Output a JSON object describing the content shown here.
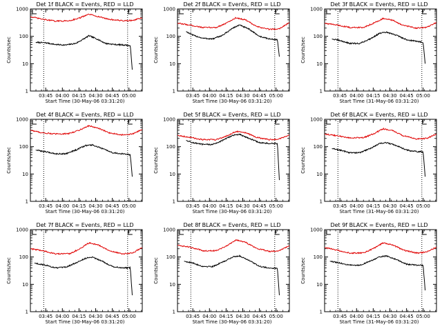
{
  "figure": {
    "rows": 3,
    "cols": 3,
    "background": "#ffffff",
    "axis_color": "#000000",
    "events_color": "#000000",
    "lld_color": "#e00000"
  },
  "chart_data": [
    {
      "type": "line",
      "title": "Det 1f BLACK = Events, RED = LLD",
      "xlabel": "Start Time (30-May-06 03:31:20)",
      "ylabel": "Counts/sec",
      "yscale": "log",
      "ylim": [
        1,
        1000
      ],
      "xlim": [
        3.52,
        5.2
      ],
      "xticks": [
        3.75,
        4.0,
        4.25,
        4.5,
        4.75,
        5.0
      ],
      "xtick_labels": [
        "03:45",
        "04:00",
        "04:15",
        "04:30",
        "04:45",
        "05:00"
      ],
      "yticks": [
        1,
        10,
        100,
        1000
      ],
      "ytick_labels": [
        "1",
        "10",
        "100",
        "1000"
      ],
      "marker_lines": [
        3.72,
        4.98
      ],
      "corner_marks": true,
      "series": [
        {
          "name": "Events",
          "color": "#000000",
          "x": [
            3.6,
            3.75,
            3.9,
            4.05,
            4.2,
            4.3,
            4.4,
            4.52,
            4.65,
            4.8,
            4.95,
            5.02,
            5.05
          ],
          "values": [
            60,
            58,
            50,
            48,
            55,
            75,
            105,
            80,
            55,
            50,
            48,
            45,
            6
          ]
        },
        {
          "name": "LLD",
          "color": "#e00000",
          "x": [
            3.52,
            3.7,
            3.9,
            4.1,
            4.25,
            4.4,
            4.55,
            4.7,
            4.9,
            5.05,
            5.2
          ],
          "values": [
            520,
            420,
            360,
            370,
            460,
            640,
            520,
            420,
            370,
            380,
            470
          ]
        }
      ]
    },
    {
      "type": "line",
      "title": "Det 2f BLACK = Events, RED = LLD",
      "xlabel": "Start Time (30-May-06 03:31:20)",
      "ylabel": "Counts/sec",
      "yscale": "log",
      "ylim": [
        1,
        1000
      ],
      "xlim": [
        3.52,
        5.2
      ],
      "xticks": [
        3.75,
        4.0,
        4.25,
        4.5,
        4.75,
        5.0
      ],
      "xtick_labels": [
        "03:45",
        "04:00",
        "04:15",
        "04:30",
        "04:45",
        "05:00"
      ],
      "yticks": [
        1,
        10,
        100,
        1000
      ],
      "ytick_labels": [
        "1",
        "10",
        "100",
        "1000"
      ],
      "marker_lines": [
        3.72,
        4.98
      ],
      "corner_marks": true,
      "series": [
        {
          "name": "Events",
          "color": "#000000",
          "x": [
            3.65,
            3.75,
            3.9,
            4.05,
            4.2,
            4.35,
            4.45,
            4.6,
            4.75,
            4.9,
            5.02,
            5.05
          ],
          "values": [
            150,
            110,
            85,
            80,
            110,
            200,
            260,
            180,
            100,
            80,
            75,
            18
          ]
        },
        {
          "name": "LLD",
          "color": "#e00000",
          "x": [
            3.52,
            3.7,
            3.9,
            4.1,
            4.25,
            4.4,
            4.55,
            4.7,
            4.9,
            5.05,
            5.2
          ],
          "values": [
            300,
            260,
            210,
            210,
            300,
            480,
            390,
            230,
            180,
            190,
            320
          ]
        }
      ]
    },
    {
      "type": "line",
      "title": "Det 3f BLACK = Events, RED = LLD",
      "xlabel": "Start Time (31-May-06 03:31:20)",
      "ylabel": "Counts/sec",
      "yscale": "log",
      "ylim": [
        1,
        1000
      ],
      "xlim": [
        3.52,
        5.2
      ],
      "xticks": [
        3.75,
        4.0,
        4.25,
        4.5,
        4.75,
        5.0
      ],
      "xtick_labels": [
        "03:45",
        "04:00",
        "04:15",
        "04:30",
        "04:45",
        "05:00"
      ],
      "yticks": [
        1,
        10,
        100,
        1000
      ],
      "ytick_labels": [
        "1",
        "10",
        "100",
        "1000"
      ],
      "marker_lines": [
        3.72,
        4.98
      ],
      "corner_marks": true,
      "series": [
        {
          "name": "Events",
          "color": "#000000",
          "x": [
            3.63,
            3.75,
            3.9,
            4.05,
            4.2,
            4.35,
            4.45,
            4.6,
            4.75,
            4.92,
            5.0,
            5.03
          ],
          "values": [
            80,
            70,
            55,
            55,
            80,
            130,
            140,
            110,
            75,
            65,
            60,
            10
          ]
        },
        {
          "name": "LLD",
          "color": "#e00000",
          "x": [
            3.52,
            3.7,
            3.9,
            4.1,
            4.25,
            4.4,
            4.55,
            4.7,
            4.9,
            5.05,
            5.2
          ],
          "values": [
            300,
            260,
            210,
            210,
            300,
            450,
            380,
            250,
            200,
            210,
            320
          ]
        }
      ]
    },
    {
      "type": "line",
      "title": "Det 4f BLACK = Events, RED = LLD",
      "xlabel": "Start Time (30-May-06 03:31:20)",
      "ylabel": "Counts/sec",
      "yscale": "log",
      "ylim": [
        1,
        1000
      ],
      "xlim": [
        3.52,
        5.2
      ],
      "xticks": [
        3.75,
        4.0,
        4.25,
        4.5,
        4.75,
        5.0
      ],
      "xtick_labels": [
        "03:45",
        "04:00",
        "04:15",
        "04:30",
        "04:45",
        "05:00"
      ],
      "yticks": [
        1,
        10,
        100,
        1000
      ],
      "ytick_labels": [
        "1",
        "10",
        "100",
        "1000"
      ],
      "marker_lines": [
        3.72,
        4.98
      ],
      "corner_marks": true,
      "series": [
        {
          "name": "Events",
          "color": "#000000",
          "x": [
            3.6,
            3.75,
            3.9,
            4.05,
            4.2,
            4.35,
            4.45,
            4.6,
            4.75,
            4.9,
            5.02,
            5.05
          ],
          "values": [
            75,
            65,
            55,
            55,
            75,
            110,
            115,
            85,
            60,
            55,
            50,
            8
          ]
        },
        {
          "name": "LLD",
          "color": "#e00000",
          "x": [
            3.52,
            3.7,
            3.9,
            4.1,
            4.25,
            4.4,
            4.55,
            4.7,
            4.9,
            5.05,
            5.2
          ],
          "values": [
            400,
            320,
            290,
            300,
            400,
            580,
            460,
            320,
            270,
            290,
            420
          ]
        }
      ]
    },
    {
      "type": "line",
      "title": "Det 5f BLACK = Events, RED = LLD",
      "xlabel": "Start Time (30-May-06 03:31:20)",
      "ylabel": "Counts/sec",
      "yscale": "log",
      "ylim": [
        1,
        1000
      ],
      "xlim": [
        3.52,
        5.2
      ],
      "xticks": [
        3.75,
        4.0,
        4.25,
        4.5,
        4.75,
        5.0
      ],
      "xtick_labels": [
        "03:45",
        "04:00",
        "04:15",
        "04:30",
        "04:45",
        "05:00"
      ],
      "yticks": [
        1,
        10,
        100,
        1000
      ],
      "ytick_labels": [
        "1",
        "10",
        "100",
        "1000"
      ],
      "marker_lines": [
        3.72,
        4.98
      ],
      "corner_marks": true,
      "series": [
        {
          "name": "Events",
          "color": "#000000",
          "x": [
            3.65,
            3.75,
            3.9,
            4.05,
            4.2,
            4.35,
            4.45,
            4.6,
            4.75,
            4.9,
            5.02,
            5.05
          ],
          "values": [
            170,
            140,
            120,
            120,
            170,
            260,
            280,
            200,
            140,
            130,
            130,
            6
          ]
        },
        {
          "name": "LLD",
          "color": "#e00000",
          "x": [
            3.52,
            3.7,
            3.9,
            4.1,
            4.25,
            4.4,
            4.55,
            4.7,
            4.9,
            5.05,
            5.2
          ],
          "values": [
            260,
            220,
            180,
            180,
            240,
            360,
            320,
            220,
            180,
            190,
            270
          ]
        }
      ]
    },
    {
      "type": "line",
      "title": "Det 6f BLACK = Events, RED = LLD",
      "xlabel": "Start Time (31-May-06 03:31:20)",
      "ylabel": "Counts/sec",
      "yscale": "log",
      "ylim": [
        1,
        1000
      ],
      "xlim": [
        3.52,
        5.2
      ],
      "xticks": [
        3.75,
        4.0,
        4.25,
        4.5,
        4.75,
        5.0
      ],
      "xtick_labels": [
        "03:45",
        "04:00",
        "04:15",
        "04:30",
        "04:45",
        "05:00"
      ],
      "yticks": [
        1,
        10,
        100,
        1000
      ],
      "ytick_labels": [
        "1",
        "10",
        "100",
        "1000"
      ],
      "marker_lines": [
        3.72,
        4.98
      ],
      "corner_marks": true,
      "series": [
        {
          "name": "Events",
          "color": "#000000",
          "x": [
            3.63,
            3.75,
            3.9,
            4.05,
            4.2,
            4.35,
            4.45,
            4.6,
            4.75,
            4.92,
            5.0,
            5.03
          ],
          "values": [
            85,
            75,
            60,
            60,
            85,
            130,
            140,
            110,
            75,
            65,
            65,
            8
          ]
        },
        {
          "name": "LLD",
          "color": "#e00000",
          "x": [
            3.52,
            3.7,
            3.9,
            4.1,
            4.25,
            4.4,
            4.55,
            4.7,
            4.9,
            5.05,
            5.2
          ],
          "values": [
            290,
            250,
            210,
            210,
            290,
            450,
            380,
            250,
            190,
            200,
            290
          ]
        }
      ]
    },
    {
      "type": "line",
      "title": "Det 7f BLACK = Events, RED = LLD",
      "xlabel": "Start Time (30-May-06 03:31:20)",
      "ylabel": "Counts/sec",
      "yscale": "log",
      "ylim": [
        1,
        1000
      ],
      "xlim": [
        3.52,
        5.2
      ],
      "xticks": [
        3.75,
        4.0,
        4.25,
        4.5,
        4.75,
        5.0
      ],
      "xtick_labels": [
        "03:45",
        "04:00",
        "04:15",
        "04:30",
        "04:45",
        "05:00"
      ],
      "yticks": [
        1,
        10,
        100,
        1000
      ],
      "ytick_labels": [
        "1",
        "10",
        "100",
        "1000"
      ],
      "marker_lines": [
        3.72,
        4.98
      ],
      "corner_marks": true,
      "series": [
        {
          "name": "Events",
          "color": "#000000",
          "x": [
            3.58,
            3.75,
            3.9,
            4.05,
            4.2,
            4.35,
            4.45,
            4.6,
            4.75,
            4.9,
            5.02,
            5.05
          ],
          "values": [
            60,
            50,
            40,
            42,
            60,
            90,
            100,
            70,
            45,
            40,
            40,
            4
          ]
        },
        {
          "name": "LLD",
          "color": "#e00000",
          "x": [
            3.52,
            3.7,
            3.9,
            4.1,
            4.25,
            4.4,
            4.55,
            4.7,
            4.9,
            5.05,
            5.2
          ],
          "values": [
            200,
            170,
            130,
            130,
            190,
            330,
            270,
            170,
            130,
            140,
            220
          ]
        }
      ]
    },
    {
      "type": "line",
      "title": "Det 8f BLACK = Events, RED = LLD",
      "xlabel": "Start Time (30-May-06 03:31:20)",
      "ylabel": "Counts/sec",
      "yscale": "log",
      "ylim": [
        1,
        1000
      ],
      "xlim": [
        3.52,
        5.2
      ],
      "xticks": [
        3.75,
        4.0,
        4.25,
        4.5,
        4.75,
        5.0
      ],
      "xtick_labels": [
        "03:45",
        "04:00",
        "04:15",
        "04:30",
        "04:45",
        "05:00"
      ],
      "yticks": [
        1,
        10,
        100,
        1000
      ],
      "ytick_labels": [
        "1",
        "10",
        "100",
        "1000"
      ],
      "marker_lines": [
        3.72,
        4.98
      ],
      "corner_marks": true,
      "series": [
        {
          "name": "Events",
          "color": "#000000",
          "x": [
            3.62,
            3.75,
            3.9,
            4.05,
            4.2,
            4.35,
            4.45,
            4.6,
            4.75,
            4.9,
            5.02,
            5.05
          ],
          "values": [
            70,
            60,
            45,
            45,
            65,
            100,
            110,
            75,
            45,
            40,
            38,
            4
          ]
        },
        {
          "name": "LLD",
          "color": "#e00000",
          "x": [
            3.52,
            3.7,
            3.9,
            4.1,
            4.25,
            4.4,
            4.55,
            4.7,
            4.9,
            5.05,
            5.2
          ],
          "values": [
            270,
            230,
            170,
            170,
            250,
            420,
            340,
            210,
            160,
            170,
            260
          ]
        }
      ]
    },
    {
      "type": "line",
      "title": "Det 9f BLACK = Events, RED = LLD",
      "xlabel": "Start Time (31-May-06 03:31:20)",
      "ylabel": "Counts/sec",
      "yscale": "log",
      "ylim": [
        1,
        1000
      ],
      "xlim": [
        3.52,
        5.2
      ],
      "xticks": [
        3.75,
        4.0,
        4.25,
        4.5,
        4.75,
        5.0
      ],
      "xtick_labels": [
        "03:45",
        "04:00",
        "04:15",
        "04:30",
        "04:45",
        "05:00"
      ],
      "yticks": [
        1,
        10,
        100,
        1000
      ],
      "ytick_labels": [
        "1",
        "10",
        "100",
        "1000"
      ],
      "marker_lines": [
        3.72,
        4.98
      ],
      "corner_marks": true,
      "series": [
        {
          "name": "Events",
          "color": "#000000",
          "x": [
            3.6,
            3.75,
            3.9,
            4.05,
            4.2,
            4.35,
            4.45,
            4.6,
            4.75,
            4.92,
            5.0,
            5.03
          ],
          "values": [
            70,
            60,
            50,
            50,
            70,
            100,
            110,
            80,
            55,
            50,
            50,
            6
          ]
        },
        {
          "name": "LLD",
          "color": "#e00000",
          "x": [
            3.52,
            3.7,
            3.9,
            4.1,
            4.25,
            4.4,
            4.55,
            4.7,
            4.9,
            5.05,
            5.2
          ],
          "values": [
            220,
            180,
            140,
            140,
            200,
            330,
            270,
            180,
            140,
            150,
            230
          ]
        }
      ]
    }
  ]
}
